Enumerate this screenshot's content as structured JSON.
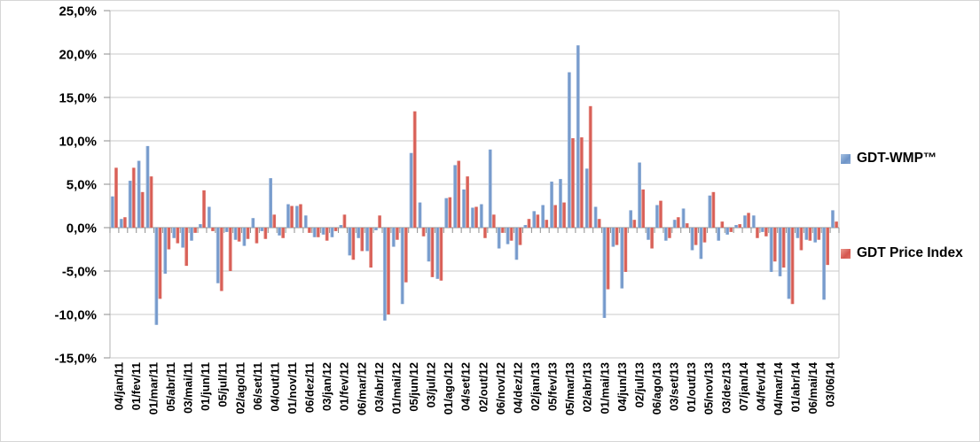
{
  "window": {
    "background": "#ffffff",
    "border_color": "#d6d6d6"
  },
  "chart_data": {
    "type": "bar",
    "title": "",
    "xlabel": "",
    "ylabel": "",
    "value_unit": "%",
    "decimal_style": "comma",
    "grid": true,
    "legend_position": "right",
    "ylim": [
      -15,
      25
    ],
    "y_tick_step": 5,
    "y_tick_labels": [
      "25,0%",
      "20,0%",
      "15,0%",
      "10,0%",
      "5,0%",
      "0,0%",
      "-5,0%",
      "-10,0%",
      "-15,0%"
    ],
    "x_tick_labels": [
      "04/jan/11",
      "01/fev/11",
      "01/mar/11",
      "05/abr/11",
      "03/mai/11",
      "01/jun/11",
      "05/jul/11",
      "02/ago/11",
      "06/set/11",
      "04/out/11",
      "01/nov/11",
      "06/dez/11",
      "03/jan/12",
      "01/fev/12",
      "06/mar/12",
      "03/abr/12",
      "01/mai/12",
      "05/jun/12",
      "03/jul/12",
      "01/ago/12",
      "04/set/12",
      "02/out/12",
      "06/nov/12",
      "04/dez/12",
      "02/jan/13",
      "05/fev/13",
      "05/mar/13",
      "02/abr/13",
      "01/mai/13",
      "04/jun/13",
      "02/jul/13",
      "06/ago/13",
      "03/set/13",
      "01/out/13",
      "05/nov/13",
      "03/dez/13",
      "07/jan/14",
      "04/fev/14",
      "04/mar/14",
      "01/abr/14",
      "06/mai/14",
      "03/06/14"
    ],
    "points_per_tick_label": 2,
    "axis_color": "#8e8e8e",
    "gridline_color": "#c9c9c9",
    "series": [
      {
        "name": "GDT-WMP™",
        "color": "#6e94c8",
        "values": [
          3.6,
          1.0,
          5.4,
          7.7,
          9.4,
          -11.2,
          -5.3,
          -1.2,
          -2.3,
          -1.5,
          0.4,
          2.4,
          -6.4,
          -0.5,
          -1.4,
          -2.1,
          1.1,
          -0.4,
          5.7,
          -0.9,
          2.7,
          2.5,
          1.4,
          -1.1,
          -0.8,
          -1.1,
          0.3,
          -3.2,
          -1.2,
          -2.7,
          -0.3,
          -10.7,
          -2.2,
          -8.8,
          8.6,
          2.9,
          -3.9,
          -5.9,
          3.4,
          7.2,
          4.4,
          2.3,
          2.7,
          9.0,
          -2.4,
          -1.9,
          -3.7,
          0.3,
          1.9,
          2.6,
          5.3,
          5.6,
          17.9,
          21.0,
          6.8,
          2.4,
          -10.4,
          -2.2,
          -7.0,
          2.0,
          7.5,
          -1.4,
          2.6,
          -1.5,
          0.9,
          2.2,
          -2.6,
          -3.6,
          3.7,
          -1.5,
          -0.8,
          0.3,
          1.4,
          1.4,
          -0.5,
          -5.1,
          -5.6,
          -8.2,
          -1.2,
          -1.4,
          -1.7,
          -8.3,
          2.0
        ]
      },
      {
        "name": "GDT Price Index",
        "color": "#d5564e",
        "values": [
          6.9,
          1.2,
          6.9,
          4.1,
          5.9,
          -8.2,
          -2.5,
          -1.8,
          -4.4,
          -0.6,
          4.3,
          -0.4,
          -7.3,
          -5.0,
          -1.6,
          -1.3,
          -1.8,
          -1.3,
          1.5,
          -1.2,
          2.5,
          2.7,
          -0.6,
          -1.1,
          -1.5,
          -0.4,
          1.5,
          -3.7,
          -2.7,
          -4.6,
          1.4,
          -10.0,
          -1.4,
          -6.3,
          13.4,
          -1.0,
          -5.7,
          -6.1,
          3.5,
          7.7,
          5.9,
          2.4,
          -1.2,
          1.5,
          -0.6,
          -1.5,
          -2.0,
          1.0,
          1.5,
          0.9,
          2.6,
          2.9,
          10.3,
          10.4,
          14.0,
          1.0,
          -7.1,
          -2.0,
          -5.1,
          0.9,
          4.4,
          -2.4,
          3.1,
          -1.2,
          1.2,
          0.5,
          -2.0,
          -1.7,
          4.1,
          0.7,
          -0.5,
          0.4,
          1.7,
          -1.2,
          -1.0,
          -3.9,
          -4.6,
          -8.8,
          -2.6,
          -1.5,
          -1.4,
          -4.3,
          0.7
        ]
      }
    ]
  }
}
